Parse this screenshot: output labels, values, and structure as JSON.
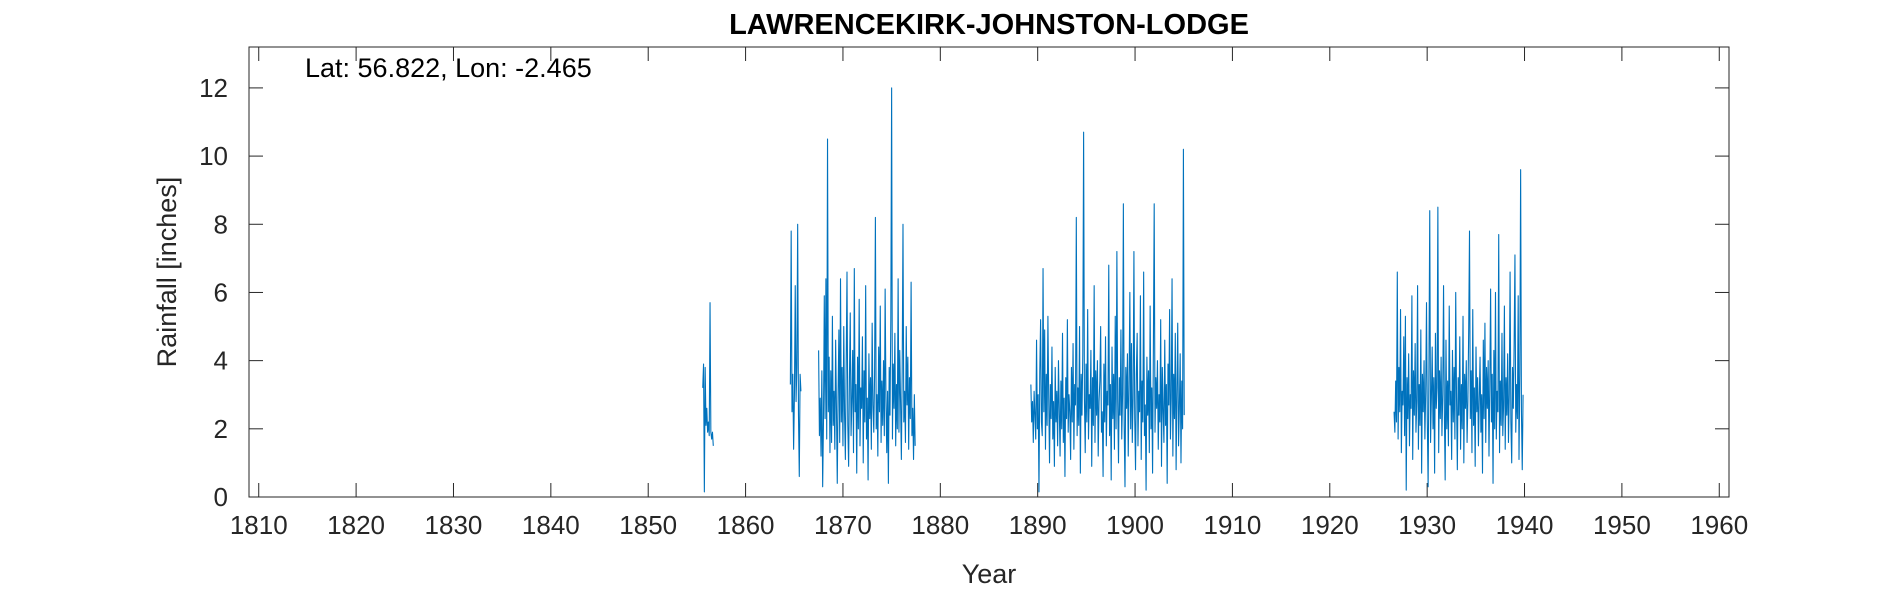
{
  "chart_data": {
    "type": "line",
    "title": "LAWRENCEKIRK-JOHNSTON-LODGE",
    "annotation": "Lat: 56.822, Lon: -2.465",
    "xlabel": "Year",
    "ylabel": "Rainfall [inches]",
    "xlim": [
      1809,
      1961
    ],
    "ylim": [
      0,
      13.2
    ],
    "xticks": [
      1810,
      1820,
      1830,
      1840,
      1850,
      1860,
      1870,
      1880,
      1890,
      1900,
      1910,
      1920,
      1930,
      1940,
      1950,
      1960
    ],
    "yticks": [
      0,
      2,
      4,
      6,
      8,
      10,
      12
    ],
    "grid": false,
    "line_color": "#0072BD",
    "series": [
      {
        "segments": [
          {
            "start": 1855.6,
            "values": [
              3.2,
              3.9,
              0.15,
              3.8,
              2.1,
              2.6,
              1.9,
              2.2,
              1.8,
              5.7,
              1.9,
              1.7,
              1.9,
              1.5
            ]
          },
          {
            "start": 1864.6,
            "values": [
              3.3,
              7.8,
              2.5,
              3.6,
              1.4,
              3.0,
              6.2,
              2.8,
              3.8,
              8.0,
              2.4,
              0.6,
              3.6,
              3.1
            ]
          },
          {
            "start": 1867.5,
            "values": [
              4.3,
              1.8,
              2.9,
              1.2,
              3.7,
              0.3,
              2.2,
              5.9,
              2.3,
              6.4,
              1.7,
              10.5,
              2.5,
              4.1,
              1.3,
              3.7,
              1.6,
              5.3,
              2.1,
              3.1,
              1.4,
              4.6,
              2.6,
              0.4,
              3.0,
              4.9,
              1.6,
              6.4,
              2.2,
              3.8,
              1.5,
              5.0,
              2.4,
              1.1,
              3.9,
              6.6,
              2.1,
              0.9,
              3.5,
              5.4,
              1.8,
              2.8,
              4.3,
              1.3,
              6.7,
              2.5,
              3.3,
              0.7,
              4.1,
              2.0,
              5.8,
              1.5,
              3.2,
              2.6,
              4.7,
              1.0,
              3.7,
              2.2,
              6.2,
              1.7,
              2.9,
              0.5,
              4.2,
              2.3,
              3.5,
              1.4,
              5.1,
              2.7,
              1.9,
              3.6,
              8.2,
              2.0,
              3.0,
              1.2,
              4.4,
              2.5,
              5.6,
              1.6,
              3.4,
              2.1,
              4.0,
              1.8,
              6.1,
              2.9,
              1.3,
              3.1,
              0.4,
              3.8,
              2.4,
              5.2,
              12.0,
              1.7,
              3.9,
              2.6,
              4.8,
              1.5,
              3.3,
              2.0,
              6.4,
              1.9,
              4.3,
              2.8,
              1.1,
              3.7,
              8.0,
              2.2,
              3.1,
              1.6,
              5.0,
              2.7,
              4.1,
              1.4,
              3.5,
              2.3,
              6.3,
              1.8,
              2.6,
              1.1,
              3.0,
              1.5
            ]
          },
          {
            "start": 1889.3,
            "values": [
              3.3,
              2.2,
              2.8,
              1.6,
              3.1,
              2.4,
              1.7,
              4.6,
              2.0,
              3.0,
              0.15,
              3.7,
              5.2,
              2.2,
              1.8,
              6.7,
              2.5,
              4.9,
              1.4,
              3.6,
              2.1,
              5.3,
              2.9,
              1.0,
              3.3,
              2.3,
              4.4,
              1.7,
              2.8,
              0.9,
              3.8,
              2.2,
              3.1,
              1.5,
              4.0,
              2.6,
              1.2,
              3.4,
              2.0,
              4.8,
              1.6,
              2.9,
              0.6,
              3.5,
              2.3,
              5.2,
              1.9,
              3.0,
              2.5,
              1.1,
              3.8,
              2.2,
              4.5,
              1.4,
              3.3,
              2.7,
              8.2,
              1.8,
              3.2,
              2.1,
              5.0,
              0.7,
              3.6,
              2.4,
              4.2,
              10.7,
              2.9,
              1.3,
              3.9,
              2.2,
              5.5,
              1.7,
              3.0,
              2.6,
              4.3,
              0.9,
              3.5,
              2.1,
              6.2,
              1.6,
              3.7,
              2.4,
              4.0,
              1.2,
              2.8,
              3.4,
              5.0,
              1.9,
              2.5,
              0.6,
              3.9,
              2.2,
              4.7,
              1.5,
              3.1,
              2.7,
              6.8,
              1.8,
              3.3,
              0.5,
              4.4,
              2.3,
              3.6,
              1.4,
              5.3,
              2.0,
              7.2,
              2.8,
              1.0,
              3.5,
              2.4,
              4.9,
              1.7,
              3.0,
              8.6,
              2.1,
              0.3,
              3.8,
              2.6,
              4.2,
              1.2,
              3.3,
              6.0,
              2.0,
              4.5,
              1.6,
              2.9,
              7.2,
              2.3,
              0.8,
              3.6,
              4.8,
              1.5,
              3.1,
              2.5,
              5.9,
              1.1,
              3.4,
              2.2,
              6.6,
              1.8,
              2.7,
              0.2,
              4.1,
              2.4,
              3.7,
              1.3,
              5.6,
              2.0,
              3.2,
              0.7,
              4.4,
              8.6,
              1.9,
              3.5,
              2.6,
              4.0,
              1.4,
              3.0,
              2.2,
              5.2,
              0.9,
              3.8,
              2.5,
              1.6,
              4.6,
              2.1,
              3.3,
              0.4,
              3.9,
              2.7,
              5.5,
              1.7,
              2.9,
              6.4,
              1.2,
              3.6,
              2.3,
              4.8,
              0.8,
              3.1,
              5.1,
              1.5,
              2.6,
              4.2,
              1.0,
              3.4,
              2.0,
              10.2,
              2.4
            ]
          },
          {
            "start": 1926.6,
            "values": [
              2.5,
              1.9,
              3.4,
              2.2,
              6.6,
              1.7,
              3.8,
              2.5,
              5.5,
              1.3,
              3.1,
              2.7,
              4.7,
              1.8,
              5.3,
              0.2,
              3.5,
              2.3,
              4.2,
              1.5,
              3.0,
              2.6,
              5.9,
              1.1,
              3.7,
              2.4,
              4.5,
              1.9,
              2.8,
              6.2,
              1.4,
              3.3,
              2.1,
              4.9,
              0.7,
              3.6,
              2.5,
              4.0,
              1.7,
              3.1,
              5.7,
              2.2,
              0.3,
              3.8,
              8.4,
              1.6,
              2.9,
              4.4,
              2.0,
              3.5,
              0.7,
              4.8,
              2.6,
              3.2,
              8.5,
              1.3,
              3.7,
              2.3,
              4.1,
              1.8,
              3.0,
              6.2,
              2.5,
              0.5,
              4.6,
              2.0,
              3.4,
              1.5,
              5.6,
              2.7,
              3.1,
              1.1,
              4.3,
              2.2,
              3.8,
              1.7,
              6.0,
              2.9,
              0.8,
              3.5,
              2.4,
              4.7,
              1.4,
              3.3,
              2.0,
              5.3,
              1.0,
              3.6,
              2.6,
              4.0,
              1.6,
              2.8,
              4.9,
              7.8,
              2.3,
              3.7,
              1.3,
              5.5,
              2.1,
              3.2,
              0.9,
              4.4,
              2.5,
              3.5,
              1.5,
              2.9,
              4.1,
              1.9,
              3.0,
              0.7,
              4.6,
              2.3,
              5.1,
              1.6,
              3.8,
              2.6,
              4.0,
              1.2,
              3.3,
              6.1,
              2.2,
              3.6,
              0.4,
              4.3,
              2.0,
              6.0,
              1.7,
              3.1,
              2.5,
              7.7,
              1.3,
              3.4,
              2.1,
              4.8,
              1.8,
              2.7,
              5.6,
              1.4,
              3.5,
              2.4,
              4.2,
              1.6,
              3.0,
              6.6,
              2.2,
              1.0,
              3.8,
              2.6,
              4.5,
              7.1,
              1.9,
              3.3,
              2.3,
              5.9,
              1.1,
              3.6,
              9.6,
              2.5,
              0.8,
              3.0
            ]
          }
        ]
      }
    ]
  }
}
